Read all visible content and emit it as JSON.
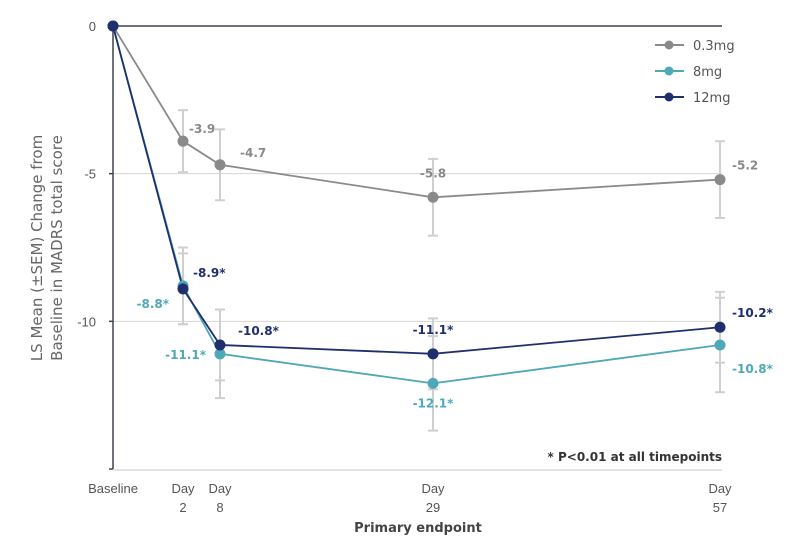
{
  "chart_data": {
    "type": "line",
    "title": "",
    "ylabel_line1": "LS Mean (±SEM) Change from",
    "ylabel_line2": "Baseline  in MADRS total score",
    "xlabel": "Primary endpoint",
    "ylim": [
      -15,
      0
    ],
    "yticks": [
      {
        "value": 0,
        "label": "0"
      },
      {
        "value": -5,
        "label": "-5"
      },
      {
        "value": -10,
        "label": "-10"
      }
    ],
    "x": [
      {
        "key": "baseline",
        "line1": "Baseline",
        "line2": "",
        "day": 0
      },
      {
        "key": "day2",
        "line1": "Day",
        "line2": "2",
        "day": 2
      },
      {
        "key": "day8",
        "line1": "Day",
        "line2": "8",
        "day": 8
      },
      {
        "key": "day29",
        "line1": "Day",
        "line2": "29",
        "day": 29
      },
      {
        "key": "day57",
        "line1": "Day",
        "line2": "57",
        "day": 57
      }
    ],
    "grid": "horizontal",
    "legend_position": "top-right",
    "series": [
      {
        "name": "0.3mg",
        "color": "#8a8a8a",
        "values": [
          0,
          -3.9,
          -4.7,
          -5.8,
          -5.2
        ],
        "sem": [
          0,
          1.05,
          1.2,
          1.3,
          1.3
        ],
        "labels": [
          "",
          "-3.9",
          "-4.7",
          "-5.8",
          "-5.2"
        ]
      },
      {
        "name": "8mg",
        "color": "#4fa8b8",
        "values": [
          0,
          -8.8,
          -11.1,
          -12.1,
          -10.8
        ],
        "sem": [
          0,
          1.3,
          1.5,
          1.6,
          1.6
        ],
        "labels": [
          "",
          "-8.8*",
          "-11.1*",
          "-12.1*",
          "-10.8*"
        ]
      },
      {
        "name": "12mg",
        "color": "#1f2f6e",
        "values": [
          0,
          -8.9,
          -10.8,
          -11.1,
          -10.2
        ],
        "sem": [
          0,
          1.2,
          1.2,
          1.2,
          1.2
        ],
        "labels": [
          "",
          "-8.9*",
          "-10.8*",
          "-11.1*",
          "-10.2*"
        ]
      }
    ],
    "annotation": "* P<0.01 at all timepoints"
  }
}
